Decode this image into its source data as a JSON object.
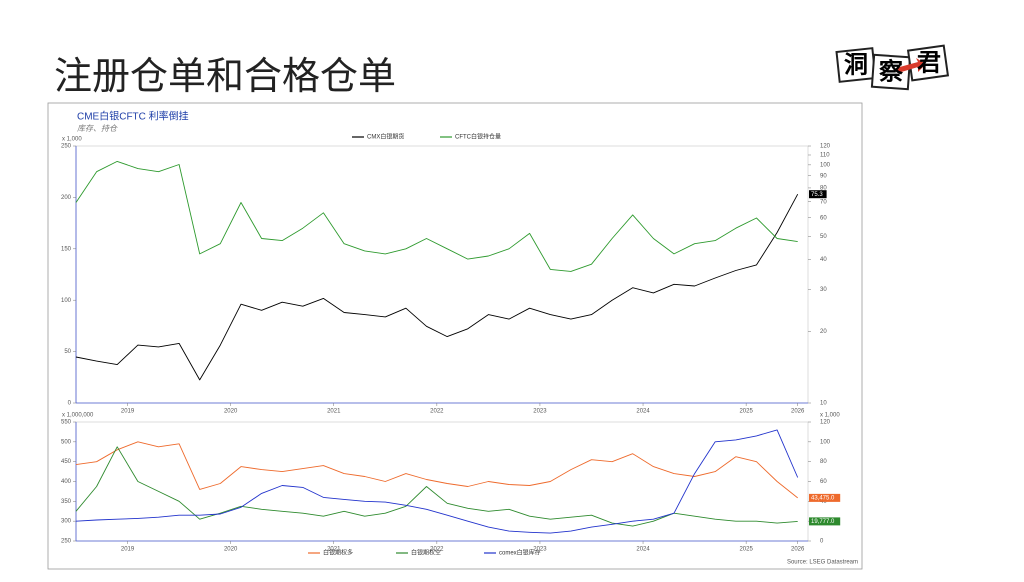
{
  "header": {
    "title": "注册仓单和合格仓单",
    "logo": [
      "洞",
      "察",
      "君"
    ]
  },
  "source": "Source: LSEG Datastream",
  "chart_data": [
    {
      "type": "line",
      "title": "CME白银CFTC 利率倒挂",
      "subtitle": "库存、持仓",
      "y_unit": "x 1,000",
      "x": [
        2019,
        2019.2,
        2019.4,
        2019.6,
        2019.8,
        2020,
        2020.2,
        2020.4,
        2020.6,
        2020.8,
        2021,
        2021.2,
        2021.4,
        2021.6,
        2021.8,
        2022,
        2022.2,
        2022.4,
        2022.6,
        2022.8,
        2023,
        2023.2,
        2023.4,
        2023.6,
        2023.8,
        2024,
        2024.2,
        2024.4,
        2024.6,
        2024.8,
        2025,
        2025.2,
        2025.4,
        2025.6,
        2025.8,
        2026
      ],
      "xlim": [
        2019,
        2026.1
      ],
      "xticks": [
        {
          "value": 2019.5,
          "label": "2019"
        },
        {
          "value": 2020.5,
          "label": "2020"
        },
        {
          "value": 2021.5,
          "label": "2021"
        },
        {
          "value": 2022.5,
          "label": "2022"
        },
        {
          "value": 2023.5,
          "label": "2023"
        },
        {
          "value": 2024.5,
          "label": "2024"
        },
        {
          "value": 2025.5,
          "label": "2025"
        },
        {
          "value": 2026,
          "label": "2026"
        }
      ],
      "ylim": [
        0,
        250
      ],
      "yticks": [
        0,
        50,
        100,
        150,
        200,
        250
      ],
      "y2lim": [
        10,
        120
      ],
      "y2ticks": [
        10,
        20,
        30,
        40,
        50,
        60,
        70,
        80,
        90,
        100,
        110,
        120
      ],
      "y2scale": "log",
      "series": [
        {
          "name": "CMX白银期货",
          "color": "#000000",
          "axis": "y2",
          "values": [
            15.6,
            15,
            14.5,
            17.5,
            17.2,
            17.8,
            12.5,
            17.5,
            26,
            24.5,
            26.5,
            25.5,
            27.5,
            24,
            23.5,
            23,
            25,
            21,
            19,
            20.5,
            23.5,
            22.5,
            25,
            23.5,
            22.5,
            23.5,
            27,
            30.5,
            29,
            31.5,
            31,
            33.5,
            36,
            38,
            52,
            75.3
          ],
          "value_labels": [
            null,
            null,
            null,
            null,
            null,
            null,
            null,
            null,
            null,
            null,
            null,
            null,
            null,
            null,
            null,
            null,
            null,
            null,
            null,
            null,
            null,
            null,
            null,
            null,
            null,
            null,
            null,
            null,
            null,
            null,
            null,
            null,
            null,
            null,
            null,
            "75.3"
          ]
        },
        {
          "name": "CFTC白银持仓量",
          "color": "#2e9a2e",
          "values": [
            195,
            225,
            235,
            228,
            225,
            232,
            145,
            155,
            195,
            160,
            158,
            170,
            185,
            155,
            148,
            145,
            150,
            160,
            150,
            140,
            143,
            150,
            165,
            130,
            128,
            135,
            160,
            183,
            160,
            145,
            155,
            158,
            170,
            180,
            160,
            157
          ]
        }
      ]
    },
    {
      "type": "line",
      "y_unit": "x 1,000,000",
      "y2_unit": "x 1,000",
      "x": [
        2019,
        2019.2,
        2019.4,
        2019.6,
        2019.8,
        2020,
        2020.2,
        2020.4,
        2020.6,
        2020.8,
        2021,
        2021.2,
        2021.4,
        2021.6,
        2021.8,
        2022,
        2022.2,
        2022.4,
        2022.6,
        2022.8,
        2023,
        2023.2,
        2023.4,
        2023.6,
        2023.8,
        2024,
        2024.2,
        2024.4,
        2024.6,
        2024.8,
        2025,
        2025.2,
        2025.4,
        2025.6,
        2025.8,
        2026
      ],
      "xlim": [
        2019,
        2026.1
      ],
      "xticks": [
        {
          "value": 2019.5,
          "label": "2019"
        },
        {
          "value": 2020.5,
          "label": "2020"
        },
        {
          "value": 2021.5,
          "label": "2021"
        },
        {
          "value": 2022.5,
          "label": "2022"
        },
        {
          "value": 2023.5,
          "label": "2023"
        },
        {
          "value": 2024.5,
          "label": "2024"
        },
        {
          "value": 2025.5,
          "label": "2025"
        },
        {
          "value": 2026,
          "label": "2026"
        }
      ],
      "ylim": [
        250,
        550
      ],
      "yticks": [
        250,
        300,
        350,
        400,
        450,
        500,
        550
      ],
      "y2lim": [
        0,
        120
      ],
      "y2ticks": [
        0,
        20,
        40,
        60,
        80,
        100,
        120
      ],
      "series": [
        {
          "name": "白银期权多",
          "color": "#ee6a2c",
          "axis": "y2",
          "values": [
            77,
            80,
            92,
            100,
            95,
            98,
            52,
            58,
            75,
            72,
            70,
            73,
            76,
            68,
            65,
            60,
            68,
            62,
            58,
            55,
            60,
            57,
            56,
            60,
            72,
            82,
            80,
            88,
            75,
            68,
            65,
            70,
            85,
            80,
            60,
            43.475
          ],
          "value_labels": [
            null,
            null,
            null,
            null,
            null,
            null,
            null,
            null,
            null,
            null,
            null,
            null,
            null,
            null,
            null,
            null,
            null,
            null,
            null,
            null,
            null,
            null,
            null,
            null,
            null,
            null,
            null,
            null,
            null,
            null,
            null,
            null,
            null,
            null,
            null,
            "43,475.0"
          ]
        },
        {
          "name": "白银期权空",
          "color": "#2e8a2e",
          "axis": "y2",
          "values": [
            30,
            55,
            95,
            60,
            50,
            40,
            22,
            28,
            35,
            32,
            30,
            28,
            25,
            30,
            25,
            28,
            35,
            55,
            38,
            33,
            30,
            32,
            25,
            22,
            24,
            26,
            18,
            15,
            20,
            28,
            25,
            22,
            20,
            20,
            18,
            19.777
          ],
          "value_labels": [
            null,
            null,
            null,
            null,
            null,
            null,
            null,
            null,
            null,
            null,
            null,
            null,
            null,
            null,
            null,
            null,
            null,
            null,
            null,
            null,
            null,
            null,
            null,
            null,
            null,
            null,
            null,
            null,
            null,
            null,
            null,
            null,
            null,
            null,
            null,
            "19,777.0"
          ]
        },
        {
          "name": "comex白银库存",
          "color": "#2233cc",
          "values": [
            300,
            303,
            305,
            307,
            310,
            315,
            315,
            318,
            335,
            370,
            390,
            385,
            360,
            355,
            350,
            348,
            340,
            330,
            315,
            300,
            285,
            275,
            272,
            270,
            275,
            285,
            292,
            300,
            305,
            320,
            420,
            500,
            505,
            515,
            530,
            410
          ]
        }
      ]
    }
  ]
}
